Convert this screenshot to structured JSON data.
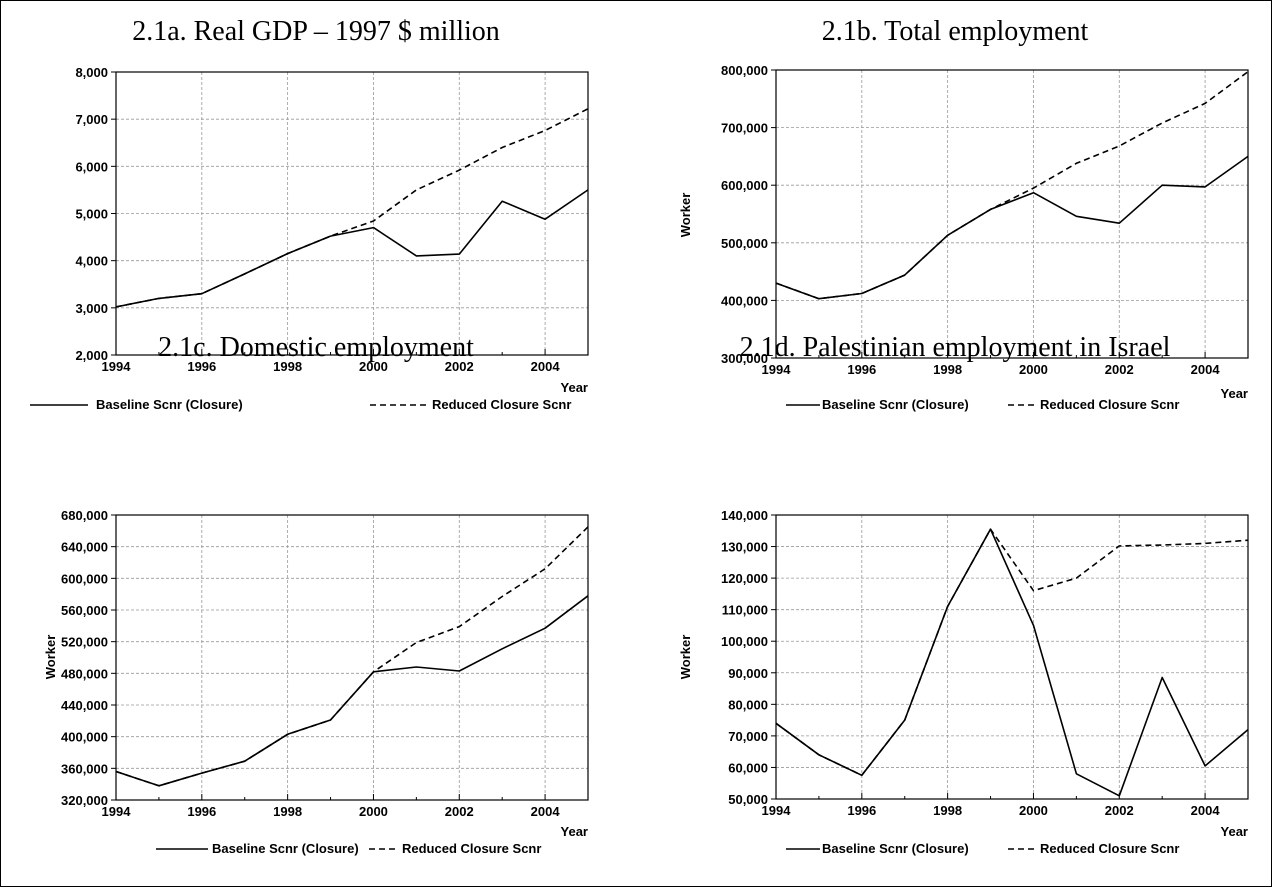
{
  "chart_data": [
    {
      "type": "line",
      "title": "2.1a. Real GDP – 1997 $ million",
      "xlabel": "Year",
      "ylabel": "",
      "xlim": [
        1994,
        2005
      ],
      "ylim": [
        2000,
        8000
      ],
      "x_ticks": [
        "1994",
        "1996",
        "1998",
        "2000",
        "2002",
        "2004"
      ],
      "y_ticks": [
        "2,000",
        "3,000",
        "4,000",
        "5,000",
        "6,000",
        "7,000",
        "8,000"
      ],
      "grid": true,
      "legend": "bottom",
      "x": [
        1994,
        1995,
        1996,
        1997,
        1998,
        1999,
        2000,
        2001,
        2002,
        2003,
        2004,
        2005
      ],
      "series": [
        {
          "name": "Baseline Scnr (Closure)",
          "style": "solid",
          "values": [
            3020,
            3200,
            3300,
            3720,
            4150,
            4520,
            4700,
            4100,
            4140,
            5260,
            4880,
            5500
          ]
        },
        {
          "name": "Reduced Closure Scnr",
          "style": "dashed",
          "values": [
            3020,
            3200,
            3300,
            3720,
            4150,
            4520,
            4840,
            5500,
            5920,
            6400,
            6760,
            7220
          ]
        }
      ]
    },
    {
      "type": "line",
      "title": "2.1b. Total employment",
      "xlabel": "Year",
      "ylabel": "Worker",
      "xlim": [
        1994,
        2005
      ],
      "ylim": [
        300000,
        800000
      ],
      "x_ticks": [
        "1994",
        "1996",
        "1998",
        "2000",
        "2002",
        "2004"
      ],
      "y_ticks": [
        "300,000",
        "400,000",
        "500,000",
        "600,000",
        "700,000",
        "800,000"
      ],
      "grid": true,
      "legend": "bottom",
      "x": [
        1994,
        1995,
        1996,
        1997,
        1998,
        1999,
        2000,
        2001,
        2002,
        2003,
        2004,
        2005
      ],
      "series": [
        {
          "name": "Baseline Scnr (Closure)",
          "style": "solid",
          "values": [
            430000,
            403000,
            412000,
            444000,
            513000,
            558000,
            587000,
            546000,
            534000,
            600000,
            597000,
            650000
          ]
        },
        {
          "name": "Reduced Closure Scnr",
          "style": "dashed",
          "values": [
            430000,
            403000,
            412000,
            444000,
            513000,
            558000,
            595000,
            638000,
            668000,
            708000,
            742000,
            797000
          ]
        }
      ]
    },
    {
      "type": "line",
      "title": "2.1c. Domestic employment",
      "xlabel": "Year",
      "ylabel": "Worker",
      "xlim": [
        1994,
        2005
      ],
      "ylim": [
        320000,
        680000
      ],
      "x_ticks": [
        "1994",
        "1996",
        "1998",
        "2000",
        "2002",
        "2004"
      ],
      "y_ticks": [
        "320,000",
        "360,000",
        "400,000",
        "440,000",
        "480,000",
        "520,000",
        "560,000",
        "600,000",
        "640,000",
        "680,000"
      ],
      "grid": true,
      "legend": "bottom",
      "x": [
        1994,
        1995,
        1996,
        1997,
        1998,
        1999,
        2000,
        2001,
        2002,
        2003,
        2004,
        2005
      ],
      "series": [
        {
          "name": "Baseline Scnr (Closure)",
          "style": "solid",
          "values": [
            356000,
            338000,
            354000,
            369000,
            403000,
            421000,
            482000,
            488000,
            483000,
            511000,
            537000,
            578000
          ]
        },
        {
          "name": "Reduced Closure Scnr",
          "style": "dashed",
          "values": [
            356000,
            338000,
            354000,
            369000,
            403000,
            421000,
            482000,
            519000,
            539000,
            577000,
            612000,
            665000
          ]
        }
      ]
    },
    {
      "type": "line",
      "title": "2.1d. Palestinian employment in Israel",
      "xlabel": "Year",
      "ylabel": "Worker",
      "xlim": [
        1994,
        2005
      ],
      "ylim": [
        50000,
        140000
      ],
      "x_ticks": [
        "1994",
        "1996",
        "1998",
        "2000",
        "2002",
        "2004"
      ],
      "y_ticks": [
        "50,000",
        "60,000",
        "70,000",
        "80,000",
        "90,000",
        "100,000",
        "110,000",
        "120,000",
        "130,000",
        "140,000"
      ],
      "grid": true,
      "legend": "bottom",
      "x": [
        1994,
        1995,
        1996,
        1997,
        1998,
        1999,
        2000,
        2001,
        2002,
        2003,
        2004,
        2005
      ],
      "series": [
        {
          "name": "Baseline Scnr (Closure)",
          "style": "solid",
          "values": [
            74000,
            64000,
            57500,
            75000,
            111000,
            135500,
            105000,
            58000,
            51000,
            88500,
            60500,
            72000
          ]
        },
        {
          "name": "Reduced Closure Scnr",
          "style": "dashed",
          "values": [
            74000,
            64000,
            57500,
            75000,
            111000,
            135500,
            116000,
            120000,
            130200,
            130500,
            131000,
            132000
          ]
        }
      ]
    }
  ]
}
